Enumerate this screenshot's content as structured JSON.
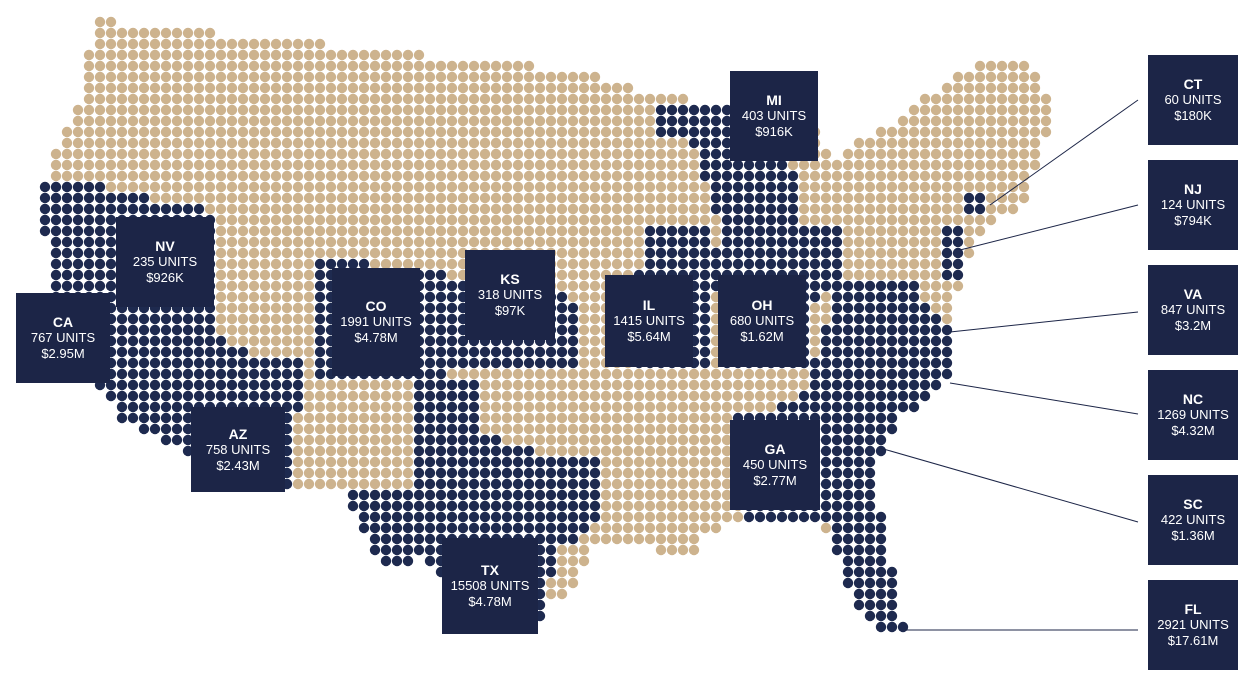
{
  "states": [
    {
      "abbr": "CA",
      "units": "767 UNITS",
      "value": "$2.95M"
    },
    {
      "abbr": "NV",
      "units": "235 UNITS",
      "value": "$926K"
    },
    {
      "abbr": "AZ",
      "units": "758 UNITS",
      "value": "$2.43M"
    },
    {
      "abbr": "CO",
      "units": "1991 UNITS",
      "value": "$4.78M"
    },
    {
      "abbr": "KS",
      "units": "318 UNITS",
      "value": "$97K"
    },
    {
      "abbr": "IL",
      "units": "1415 UNITS",
      "value": "$5.64M"
    },
    {
      "abbr": "OH",
      "units": "680 UNITS",
      "value": "$1.62M"
    },
    {
      "abbr": "MI",
      "units": "403 UNITS",
      "value": "$916K"
    },
    {
      "abbr": "GA",
      "units": "450 UNITS",
      "value": "$2.77M"
    },
    {
      "abbr": "TX",
      "units": "15508 UNITS",
      "value": "$4.78M"
    },
    {
      "abbr": "CT",
      "units": "60 UNITS",
      "value": "$180K"
    },
    {
      "abbr": "NJ",
      "units": "124 UNITS",
      "value": "$794K"
    },
    {
      "abbr": "VA",
      "units": "847 UNITS",
      "value": "$3.2M"
    },
    {
      "abbr": "NC",
      "units": "1269 UNITS",
      "value": "$4.32M"
    },
    {
      "abbr": "SC",
      "units": "422 UNITS",
      "value": "$1.36M"
    },
    {
      "abbr": "FL",
      "units": "2921 UNITS",
      "value": "$17.61M"
    }
  ]
}
